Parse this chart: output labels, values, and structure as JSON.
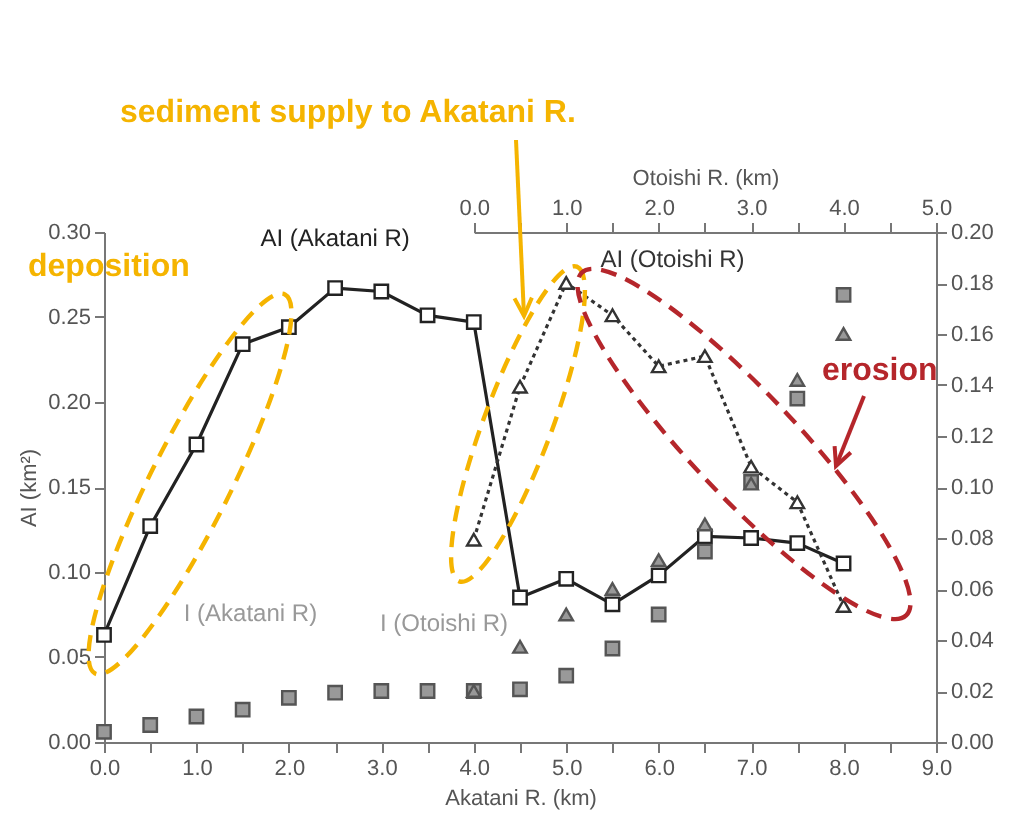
{
  "chart_data": {
    "type": "line",
    "xlabel": "Akatani R. (km)",
    "x2label": "Otoishi R. (km)",
    "ylabel": "AI (km²)",
    "xlim": [
      0,
      9
    ],
    "xticks": [
      {
        "value": 0,
        "label": "0.0"
      },
      {
        "value": 0.5,
        "label": null
      },
      {
        "value": 1,
        "label": "1.0"
      },
      {
        "value": 1.5,
        "label": null
      },
      {
        "value": 2,
        "label": "2.0"
      },
      {
        "value": 2.5,
        "label": null
      },
      {
        "value": 3,
        "label": "3.0"
      },
      {
        "value": 3.5,
        "label": null
      },
      {
        "value": 4,
        "label": "4.0"
      },
      {
        "value": 4.5,
        "label": null
      },
      {
        "value": 5,
        "label": "5.0"
      },
      {
        "value": 5.5,
        "label": null
      },
      {
        "value": 6,
        "label": "6.0"
      },
      {
        "value": 6.5,
        "label": null
      },
      {
        "value": 7,
        "label": "7.0"
      },
      {
        "value": 7.5,
        "label": null
      },
      {
        "value": 8,
        "label": "8.0"
      },
      {
        "value": 8.5,
        "label": null
      },
      {
        "value": 9,
        "label": "9.0"
      }
    ],
    "x2lim": [
      0,
      5
    ],
    "x2ticks": [
      {
        "value": 0,
        "label": "0.0"
      },
      {
        "value": 0.5,
        "label": null
      },
      {
        "value": 1,
        "label": "1.0"
      },
      {
        "value": 1.5,
        "label": null
      },
      {
        "value": 2,
        "label": "2.0"
      },
      {
        "value": 2.5,
        "label": null
      },
      {
        "value": 3,
        "label": "3.0"
      },
      {
        "value": 3.5,
        "label": null
      },
      {
        "value": 4,
        "label": "4.0"
      },
      {
        "value": 4.5,
        "label": null
      },
      {
        "value": 5,
        "label": "5.0"
      }
    ],
    "ylim": [
      0,
      0.3
    ],
    "yticks": [
      {
        "value": 0,
        "label": "0.00"
      },
      {
        "value": 0.05,
        "label": "0.05"
      },
      {
        "value": 0.1,
        "label": "0.10"
      },
      {
        "value": 0.15,
        "label": "0.15"
      },
      {
        "value": 0.2,
        "label": "0.20"
      },
      {
        "value": 0.25,
        "label": "0.25"
      },
      {
        "value": 0.3,
        "label": "0.30"
      }
    ],
    "y2lim": [
      0,
      0.2
    ],
    "y2ticks": [
      {
        "value": 0,
        "label": "0.00"
      },
      {
        "value": 0.02,
        "label": "0.02"
      },
      {
        "value": 0.04,
        "label": "0.04"
      },
      {
        "value": 0.06,
        "label": "0.06"
      },
      {
        "value": 0.08,
        "label": "0.08"
      },
      {
        "value": 0.1,
        "label": "0.10"
      },
      {
        "value": 0.12,
        "label": "0.12"
      },
      {
        "value": 0.14,
        "label": "0.14"
      },
      {
        "value": 0.16,
        "label": "0.16"
      },
      {
        "value": 0.18,
        "label": "0.18"
      },
      {
        "value": 0.2,
        "label": "0.20"
      }
    ],
    "series": [
      {
        "name": "AI (Akatani R)",
        "marker": "square",
        "line_style": "solid",
        "color": "#222222",
        "x": [
          0,
          0.5,
          1,
          1.5,
          2,
          2.5,
          3,
          3.5,
          4,
          4.5,
          5,
          5.5,
          6,
          6.5,
          7,
          7.5,
          8
        ],
        "values": [
          0.063,
          0.127,
          0.175,
          0.234,
          0.244,
          0.267,
          0.265,
          0.251,
          0.247,
          0.085,
          0.096,
          0.081,
          0.098,
          0.121,
          0.12,
          0.117,
          0.105
        ]
      },
      {
        "name": "I (Akatani R)",
        "type": "scatter",
        "marker": "square",
        "color": "#999999",
        "x": [
          0,
          0.5,
          1,
          1.5,
          2,
          2.5,
          3,
          3.5,
          4,
          4.5,
          5,
          5.5,
          6,
          6.5,
          7,
          7.5,
          8
        ],
        "values": [
          0.006,
          0.01,
          0.015,
          0.019,
          0.026,
          0.029,
          0.03,
          0.03,
          0.03,
          0.031,
          0.039,
          0.055,
          0.075,
          0.112,
          0.153,
          0.202,
          0.263
        ]
      },
      {
        "name": "AI (Otoishi R)",
        "marker": "triangle",
        "line_style": "dotted",
        "axis": "x2",
        "color": "#333333",
        "x": [
          0,
          0.5,
          1,
          1.5,
          2,
          2.5,
          3,
          3.5,
          4
        ],
        "values": [
          0.119,
          0.209,
          0.27,
          0.251,
          0.221,
          0.227,
          0.162,
          0.141,
          0.08
        ]
      },
      {
        "name": "I (Otoishi R)",
        "type": "scatter",
        "marker": "triangle",
        "axis": "x2",
        "color": "#999999",
        "x": [
          0,
          0.5,
          1,
          1.5,
          2,
          2.5,
          3,
          3.5,
          4
        ],
        "values": [
          0.03,
          0.056,
          0.075,
          0.09,
          0.107,
          0.128,
          0.152,
          0.213,
          0.24
        ]
      }
    ],
    "annotations": [
      "sediment supply to Akatani R.",
      "deposition",
      "erosion"
    ],
    "grid": false
  }
}
